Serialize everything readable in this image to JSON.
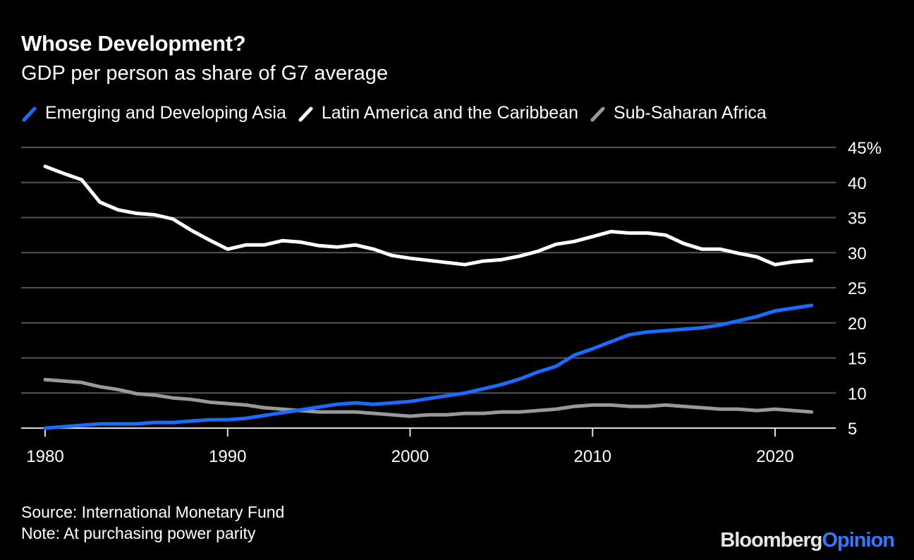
{
  "chart_data": {
    "type": "line",
    "title": "Whose Development?",
    "subtitle": "GDP per person as share of G7 average",
    "x": [
      1980,
      1981,
      1982,
      1983,
      1984,
      1985,
      1986,
      1987,
      1988,
      1989,
      1990,
      1991,
      1992,
      1993,
      1994,
      1995,
      1996,
      1997,
      1998,
      1999,
      2000,
      2001,
      2002,
      2003,
      2004,
      2005,
      2006,
      2007,
      2008,
      2009,
      2010,
      2011,
      2012,
      2013,
      2014,
      2015,
      2016,
      2017,
      2018,
      2019,
      2020,
      2021,
      2022
    ],
    "xlim": [
      1980,
      2023
    ],
    "ylim": [
      5,
      45
    ],
    "x_ticks": [
      {
        "value": 1980,
        "label": "1980"
      },
      {
        "value": 1990,
        "label": "1990"
      },
      {
        "value": 2000,
        "label": "2000"
      },
      {
        "value": 2010,
        "label": "2010"
      },
      {
        "value": 2020,
        "label": "2020"
      }
    ],
    "y_ticks": [
      {
        "value": 45,
        "label": "45%"
      },
      {
        "value": 40,
        "label": "40"
      },
      {
        "value": 35,
        "label": "35"
      },
      {
        "value": 30,
        "label": "30"
      },
      {
        "value": 25,
        "label": "25"
      },
      {
        "value": 20,
        "label": "20"
      },
      {
        "value": 15,
        "label": "15"
      },
      {
        "value": 10,
        "label": "10"
      },
      {
        "value": 5,
        "label": "5"
      }
    ],
    "grid": true,
    "y_axis_side": "right",
    "legend_placement": "top",
    "series": [
      {
        "name": "Emerging and Developing Asia",
        "color": "#1a6cff",
        "values": [
          5.0,
          5.2,
          5.4,
          5.6,
          5.6,
          5.6,
          5.8,
          5.8,
          6.0,
          6.2,
          6.2,
          6.4,
          6.8,
          7.2,
          7.6,
          8.0,
          8.4,
          8.6,
          8.4,
          8.6,
          8.8,
          9.2,
          9.6,
          10.0,
          10.6,
          11.2,
          12.0,
          13.0,
          13.8,
          15.4,
          16.3,
          17.3,
          18.3,
          18.7,
          18.9,
          19.1,
          19.3,
          19.7,
          20.3,
          20.9,
          21.7,
          22.1,
          22.5
        ]
      },
      {
        "name": "Latin America and the Caribbean",
        "color": "#ffffff",
        "values": [
          42.3,
          41.3,
          40.4,
          37.2,
          36.1,
          35.6,
          35.4,
          34.8,
          33.2,
          31.8,
          30.5,
          31.1,
          31.1,
          31.7,
          31.5,
          31.0,
          30.8,
          31.1,
          30.5,
          29.6,
          29.2,
          28.9,
          28.6,
          28.3,
          28.8,
          29.0,
          29.5,
          30.2,
          31.2,
          31.6,
          32.3,
          33.0,
          32.8,
          32.8,
          32.5,
          31.3,
          30.5,
          30.5,
          29.9,
          29.4,
          28.3,
          28.7,
          28.9
        ]
      },
      {
        "name": "Sub-Saharan Africa",
        "color": "#999999",
        "values": [
          11.9,
          11.7,
          11.5,
          10.9,
          10.5,
          9.9,
          9.7,
          9.3,
          9.1,
          8.7,
          8.5,
          8.3,
          7.9,
          7.7,
          7.5,
          7.3,
          7.3,
          7.3,
          7.1,
          6.9,
          6.7,
          6.9,
          6.9,
          7.1,
          7.1,
          7.3,
          7.3,
          7.5,
          7.7,
          8.1,
          8.3,
          8.3,
          8.1,
          8.1,
          8.3,
          8.1,
          7.9,
          7.7,
          7.7,
          7.5,
          7.7,
          7.5,
          7.3
        ]
      }
    ]
  },
  "footer": {
    "source": "Source: International Monetary Fund",
    "note": "Note: At purchasing power parity"
  },
  "logo": {
    "brand": "Bloomberg",
    "suffix": "Opinion",
    "accent": "#2f7bff"
  },
  "colors": {
    "background": "#000000",
    "grid": "#555555"
  }
}
